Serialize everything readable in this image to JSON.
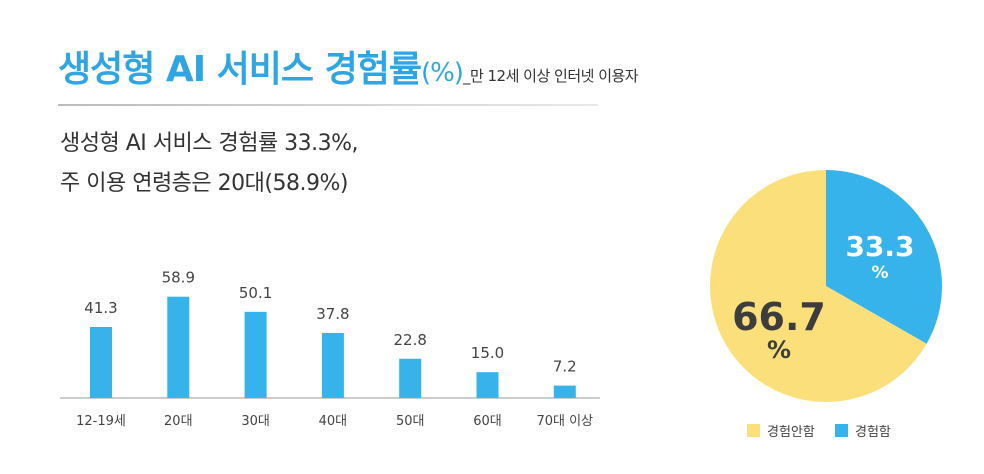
{
  "title": {
    "main": "생성형 AI 서비스 경험률",
    "unit": "(%)",
    "subtitle": "_만 12세 이상 인터넷 이용자"
  },
  "headline": [
    "생성형 AI 서비스 경험률 33.3%,",
    "주 이용 연령층은 20대(58.9%)"
  ],
  "chart_data": [
    {
      "type": "bar",
      "categories": [
        "12-19세",
        "20대",
        "30대",
        "40대",
        "50대",
        "60대",
        "70대 이상"
      ],
      "values": [
        41.3,
        58.9,
        50.1,
        37.8,
        22.8,
        15.0,
        7.2
      ],
      "value_labels": [
        "41.3",
        "58.9",
        "50.1",
        "37.8",
        "22.8",
        "15.0",
        "7.2"
      ],
      "color": "#35b3ea",
      "grid": false
    },
    {
      "type": "pie",
      "slices": [
        {
          "name": "경험함",
          "value": 33.3,
          "label": "33.3",
          "color": "#35b3ea"
        },
        {
          "name": "경험안함",
          "value": 66.7,
          "label": "66.7",
          "color": "#fbdf7a"
        }
      ],
      "percent_sign": "%",
      "legend_order": [
        "경험안함",
        "경험함"
      ],
      "legend_position": "bottom"
    }
  ]
}
